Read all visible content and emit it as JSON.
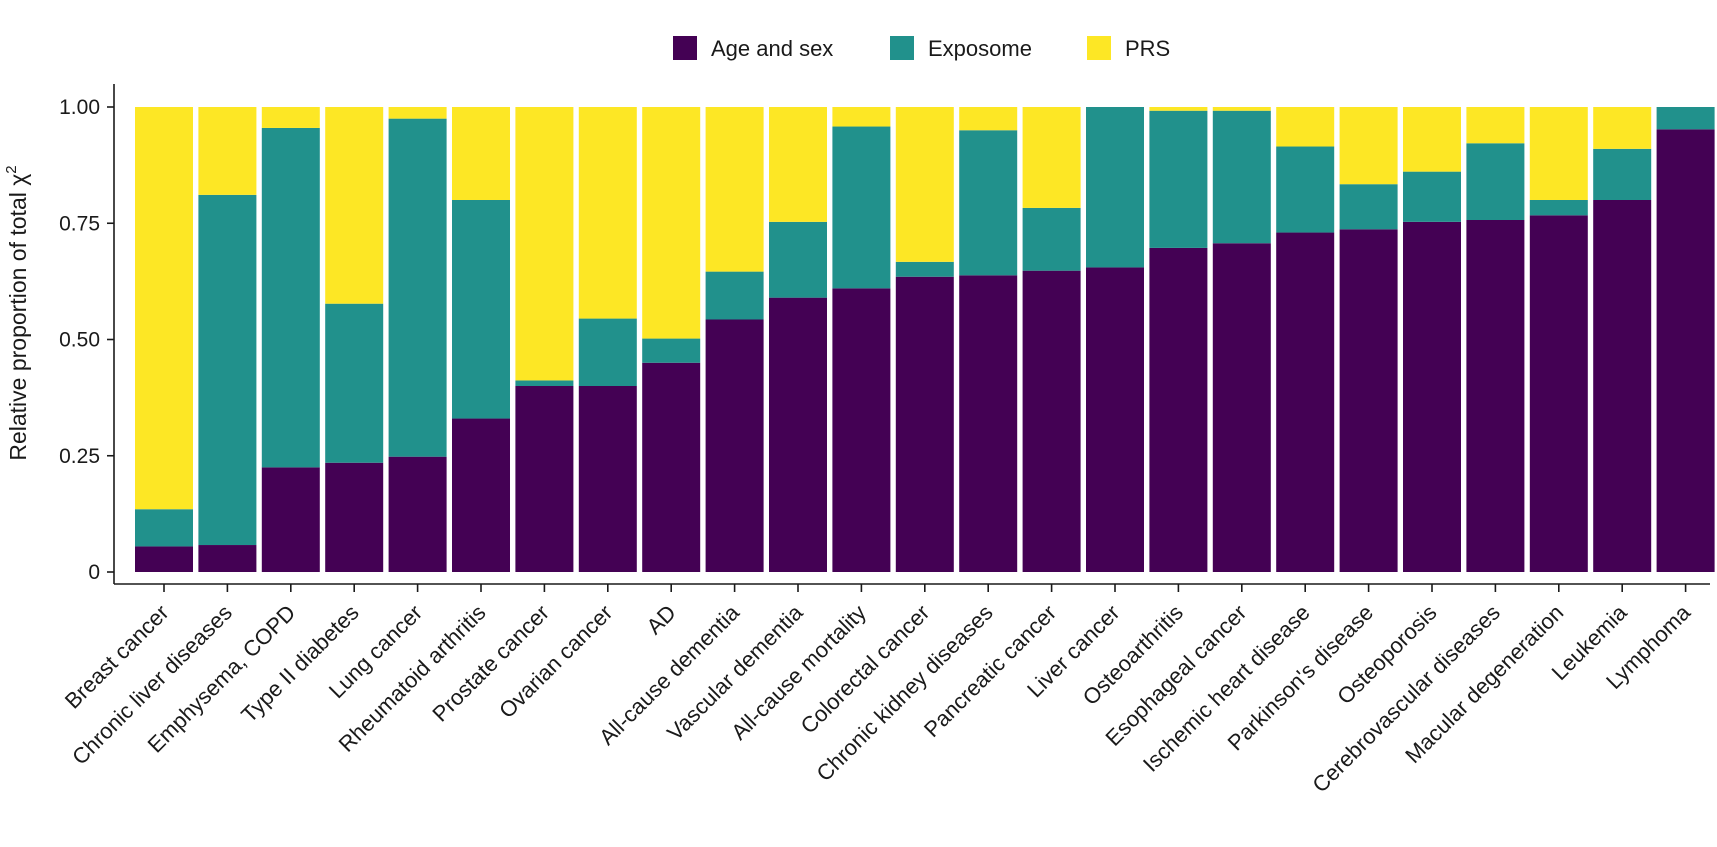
{
  "chart_data": {
    "type": "bar",
    "stacked": true,
    "title": "",
    "xlabel": "",
    "ylabel": "Relative proportion of total χ",
    "ylabel_superscript": "2",
    "ylim": [
      0,
      1
    ],
    "yticks": [
      0,
      0.25,
      0.5,
      0.75,
      1.0
    ],
    "ytick_labels": [
      "0",
      "0.25",
      "0.50",
      "0.75",
      "1.00"
    ],
    "grid": false,
    "legend_position": "top-center",
    "categories": [
      "Breast cancer",
      "Chronic liver diseases",
      "Emphysema, COPD",
      "Type II diabetes",
      "Lung cancer",
      "Rheumatoid arthritis",
      "Prostate cancer",
      "Ovarian cancer",
      "AD",
      "All-cause dementia",
      "Vascular dementia",
      "All-cause mortality",
      "Colorectal cancer",
      "Chronic kidney diseases",
      "Pancreatic cancer",
      "Liver cancer",
      "Osteoarthritis",
      "Esophageal cancer",
      "Ischemic heart disease",
      "Parkinson's disease",
      "Osteoporosis",
      "Cerebrovascular diseases",
      "Macular degeneration",
      "Leukemia",
      "Lymphoma"
    ],
    "series": [
      {
        "name": "Age and sex",
        "color": "#440154",
        "values": [
          0.055,
          0.058,
          0.225,
          0.235,
          0.248,
          0.33,
          0.4,
          0.4,
          0.45,
          0.543,
          0.59,
          0.61,
          0.635,
          0.638,
          0.648,
          0.655,
          0.697,
          0.707,
          0.73,
          0.737,
          0.753,
          0.757,
          0.767,
          0.8,
          0.952
        ]
      },
      {
        "name": "Exposome",
        "color": "#21918c",
        "values": [
          0.08,
          0.753,
          0.73,
          0.342,
          0.727,
          0.47,
          0.012,
          0.145,
          0.052,
          0.103,
          0.163,
          0.348,
          0.032,
          0.312,
          0.135,
          0.345,
          0.295,
          0.285,
          0.185,
          0.097,
          0.108,
          0.165,
          0.033,
          0.11,
          0.048
        ]
      },
      {
        "name": "PRS",
        "color": "#fde725",
        "values": [
          0.865,
          0.189,
          0.045,
          0.423,
          0.025,
          0.2,
          0.588,
          0.455,
          0.498,
          0.354,
          0.247,
          0.042,
          0.333,
          0.05,
          0.217,
          0.0,
          0.008,
          0.008,
          0.085,
          0.166,
          0.139,
          0.078,
          0.2,
          0.09,
          0.0
        ]
      }
    ]
  }
}
